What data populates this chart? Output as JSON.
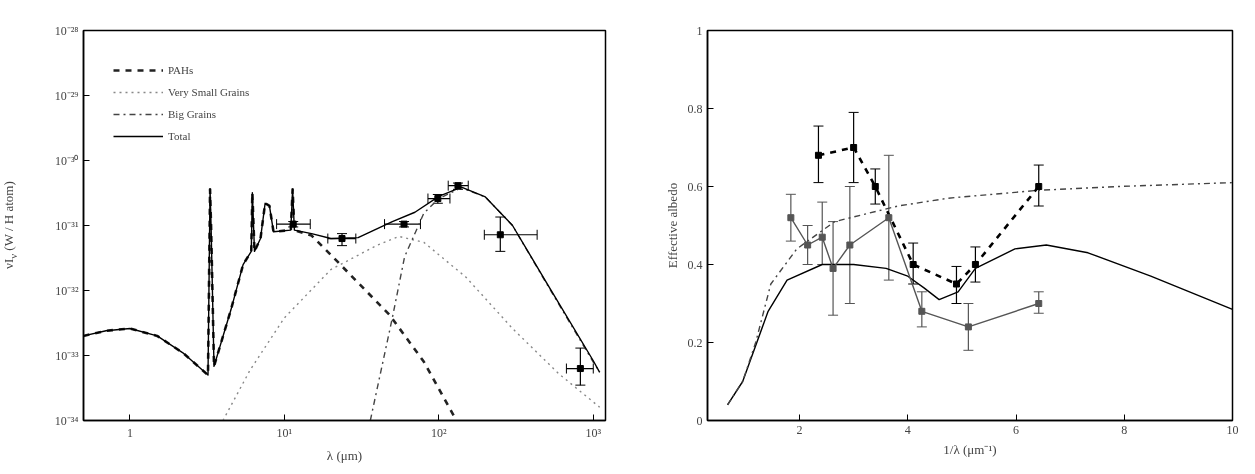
{
  "chart_data": [
    {
      "type": "line",
      "xlabel": "λ (μm)",
      "ylabel": "νI$_{ν}$ (W / H atom)",
      "log": "xy",
      "legend": "top left",
      "xlim": [
        0.5,
        1200
      ],
      "ylim": [
        1e-34,
        1e-28
      ],
      "xticks": [
        {
          "value": 1,
          "label": "1"
        },
        {
          "value": 10,
          "label": "10¹"
        },
        {
          "value": 100,
          "label": "10²"
        },
        {
          "value": 1000,
          "label": "10³"
        }
      ],
      "yticks": [
        {
          "value": 1e-34,
          "label": "10⁻³⁴"
        },
        {
          "value": 1e-33,
          "label": "10⁻³³"
        },
        {
          "value": 1e-32,
          "label": "10⁻³²"
        },
        {
          "value": 1e-31,
          "label": "10⁻³¹"
        },
        {
          "value": 1e-30,
          "label": "10⁻³⁰"
        },
        {
          "value": 1e-29,
          "label": "10⁻²⁹"
        },
        {
          "value": 1e-28,
          "label": "10⁻²⁸"
        }
      ],
      "series": [
        {
          "name": "PAHs",
          "line_style": "dashed",
          "color": "#222222",
          "x": [
            0.5,
            0.7,
            1,
            1.5,
            2.2,
            3.2,
            3.3,
            3.35,
            3.5,
            4.5,
            5.4,
            6.1,
            6.2,
            6.4,
            7.0,
            7.5,
            8.0,
            8.5,
            11,
            11.3,
            11.6,
            15,
            22,
            48,
            80,
            130
          ],
          "values": [
            2e-33,
            2.4e-33,
            2.6e-33,
            2e-33,
            1.1e-33,
            5e-34,
            3.6e-31,
            1e-31,
            6.8e-34,
            5e-33,
            2.5e-32,
            4e-32,
            3.2e-31,
            4e-32,
            6.3e-32,
            2.2e-31,
            2e-31,
            8e-32,
            8.5e-32,
            3.6e-31,
            8.5e-32,
            7e-32,
            2.8e-32,
            4.2e-33,
            8e-34,
            1e-34
          ]
        },
        {
          "name": "Very Small Grains",
          "line_style": "dotted",
          "color": "#888888",
          "x": [
            4,
            6,
            10,
            20,
            40,
            55,
            80,
            150,
            300,
            600,
            1100
          ],
          "values": [
            1e-34,
            6e-34,
            3.8e-33,
            2.1e-32,
            5e-32,
            6.8e-32,
            5.5e-32,
            1.6e-32,
            2.6e-33,
            5.2e-34,
            1.6e-34
          ]
        },
        {
          "name": "Big Grains",
          "line_style": "dashdot",
          "color": "#444444",
          "x": [
            36,
            50,
            60,
            80,
            100,
            140,
            200,
            300,
            500,
            1000,
            1100
          ],
          "values": [
            1e-34,
            3.8e-33,
            3.3e-32,
            1.55e-31,
            2.6e-31,
            3.8e-31,
            2.75e-31,
            1e-31,
            1.26e-32,
            7.9e-34,
            5.6e-34
          ]
        },
        {
          "name": "Total",
          "line_style": "solid",
          "color": "#000000",
          "x": [
            0.5,
            0.7,
            1,
            1.5,
            2.2,
            3.2,
            3.3,
            3.35,
            3.5,
            4.5,
            5.4,
            6.1,
            6.2,
            6.4,
            7.0,
            7.5,
            8.0,
            8.5,
            11,
            11.3,
            11.6,
            15,
            20,
            30,
            50,
            70,
            100,
            140,
            200,
            300,
            500,
            1000,
            1100
          ],
          "values": [
            2e-33,
            2.4e-33,
            2.6e-33,
            2e-33,
            1.1e-33,
            5e-34,
            3.6e-31,
            1e-31,
            6.8e-34,
            5e-33,
            2.5e-32,
            4e-32,
            3.2e-31,
            4e-32,
            6.3e-32,
            2.2e-31,
            2e-31,
            8e-32,
            8.5e-32,
            3.6e-31,
            8.5e-32,
            7.5e-32,
            6.3e-32,
            6.5e-32,
            1.15e-31,
            1.6e-31,
            2.8e-31,
            3.9e-31,
            2.75e-31,
            1e-31,
            1.3e-32,
            8.3e-34,
            5.5e-34
          ]
        },
        {
          "type": "scatter",
          "marker": "square",
          "color": "#000000",
          "x": [
            11.4,
            23.6,
            59.5,
            98.5,
            133,
            250,
            825
          ],
          "values": [
            1.05e-31,
            6.3e-32,
            1.05e-31,
            2.6e-31,
            4.1e-31,
            7.2e-32,
            6.3e-34
          ],
          "errors": [
            [
              9.5e-32,
              1.15e-31
            ],
            [
              4.9e-32,
              7.5e-32
            ],
            [
              9.5e-32,
              1.15e-31
            ],
            [
              2.2e-31,
              3e-31
            ],
            [
              3.6e-31,
              4.5e-31
            ],
            [
              4e-32,
              1.35e-31
            ],
            [
              3.5e-34,
              1.3e-33
            ]
          ],
          "xerrors": [
            [
              8.9,
              14.7
            ],
            [
              19.1,
              29
            ],
            [
              44.5,
              76
            ],
            [
              85,
              118
            ],
            [
              115,
              155
            ],
            [
              197,
              433
            ],
            [
              670,
              1000
            ]
          ]
        }
      ]
    },
    {
      "type": "line",
      "xlabel": "1/λ (μm⁻¹)",
      "ylabel": "Effective albedo",
      "xlim": [
        0.3,
        10
      ],
      "ylim": [
        0,
        1
      ],
      "xticks": [
        2,
        4,
        6,
        8,
        10
      ],
      "yticks": [
        0,
        0.2,
        0.4,
        0.6,
        0.8,
        1
      ],
      "series": [
        {
          "line_style": "solid",
          "color": "#000000",
          "x": [
            0.67,
            0.95,
            1.42,
            1.77,
            2.42,
            3.0,
            3.6,
            4.0,
            4.3,
            4.58,
            4.93,
            5.25,
            5.98,
            6.56,
            7.33,
            8.49,
            10
          ],
          "values": [
            0.04,
            0.1,
            0.28,
            0.36,
            0.4,
            0.4,
            0.39,
            0.37,
            0.34,
            0.31,
            0.33,
            0.39,
            0.44,
            0.45,
            0.43,
            0.37,
            0.285
          ]
        },
        {
          "line_style": "dashdot",
          "color": "#444444",
          "x": [
            0.67,
            0.95,
            1.19,
            1.47,
            1.95,
            2.65,
            3.82,
            4.75,
            6.39,
            7.9,
            10
          ],
          "values": [
            0.04,
            0.1,
            0.2,
            0.35,
            0.44,
            0.51,
            0.55,
            0.57,
            0.59,
            0.6,
            0.61
          ]
        },
        {
          "line_style": "dashed",
          "marker": "square",
          "color": "#000000",
          "x": [
            2.35,
            3.0,
            3.4,
            4.1,
            4.9,
            5.25,
            6.42
          ],
          "values": [
            0.68,
            0.7,
            0.6,
            0.4,
            0.35,
            0.4,
            0.6
          ],
          "errors": [
            [
              0.61,
              0.755
            ],
            [
              0.61,
              0.79
            ],
            [
              0.555,
              0.645
            ],
            [
              0.35,
              0.455
            ],
            [
              0.3,
              0.395
            ],
            [
              0.355,
              0.445
            ],
            [
              0.55,
              0.655
            ]
          ]
        },
        {
          "line_style": "solid",
          "marker": "square",
          "color": "#555555",
          "x": [
            1.84,
            2.15,
            2.42,
            2.62,
            2.93,
            3.65,
            4.26,
            5.12,
            6.42
          ],
          "values": [
            0.52,
            0.45,
            0.47,
            0.39,
            0.45,
            0.52,
            0.28,
            0.24,
            0.3
          ],
          "errors": [
            [
              0.46,
              0.58
            ],
            [
              0.4,
              0.5
            ],
            [
              0.4,
              0.56
            ],
            [
              0.27,
              0.51
            ],
            [
              0.3,
              0.6
            ],
            [
              0.36,
              0.68
            ],
            [
              0.24,
              0.33
            ],
            [
              0.18,
              0.3
            ],
            [
              0.275,
              0.33
            ]
          ]
        }
      ]
    }
  ]
}
